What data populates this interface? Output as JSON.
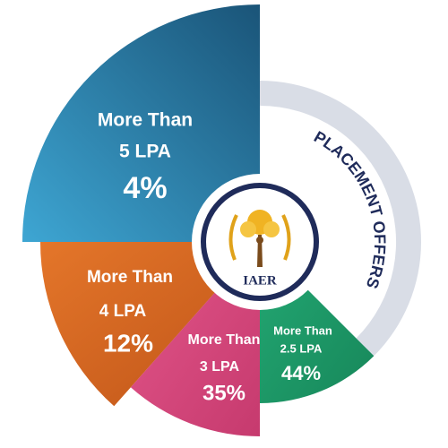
{
  "title": "PLACEMENT OFFERS",
  "logo": "IAER",
  "segments": [
    {
      "label": [
        "More Than",
        "5 LPA"
      ],
      "value": "4%"
    },
    {
      "label": [
        "More Than",
        "4 LPA"
      ],
      "value": "12%"
    },
    {
      "label": [
        "More Than",
        "3 LPA"
      ],
      "value": "35%"
    },
    {
      "label": [
        "More Than",
        "2.5 LPA"
      ],
      "value": "44%"
    }
  ]
}
